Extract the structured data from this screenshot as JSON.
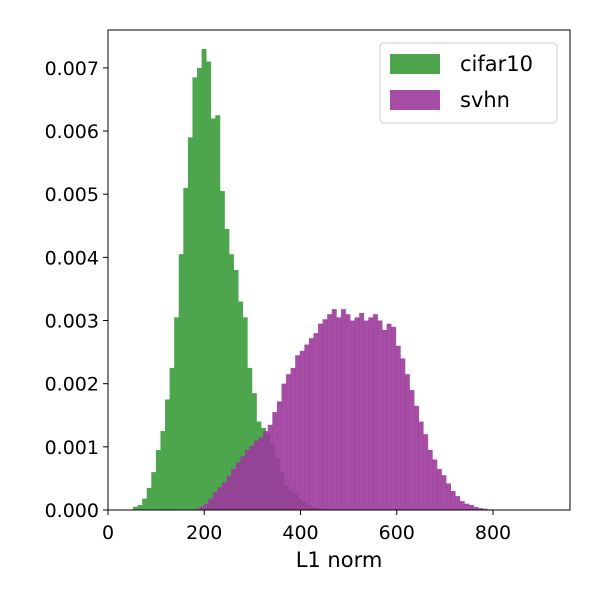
{
  "chart_data": {
    "type": "bar",
    "subtype": "overlapping-histogram",
    "title": "",
    "xlabel": "L1 norm",
    "ylabel": "",
    "xlim": [
      0,
      960
    ],
    "ylim": [
      0,
      0.0076
    ],
    "xticks": [
      0,
      200,
      400,
      600,
      800
    ],
    "xtick_labels": [
      "0",
      "200",
      "400",
      "600",
      "800"
    ],
    "yticks": [
      0.0,
      0.001,
      0.002,
      0.003,
      0.004,
      0.005,
      0.006,
      0.007
    ],
    "ytick_labels": [
      "0.000",
      "0.001",
      "0.002",
      "0.003",
      "0.004",
      "0.005",
      "0.006",
      "0.007"
    ],
    "grid": false,
    "legend_position": "top-right",
    "bin_width": 9.5,
    "series": [
      {
        "name": "cifar10",
        "color": "#4da64d",
        "opacity": 1.0,
        "bin_start": 52,
        "density": [
          5e-05,
          8e-05,
          0.00018,
          0.00035,
          0.0006,
          0.00095,
          0.00125,
          0.00175,
          0.00225,
          0.00305,
          0.00405,
          0.0051,
          0.0059,
          0.00685,
          0.007,
          0.0073,
          0.0071,
          0.0062,
          0.00625,
          0.00505,
          0.00445,
          0.00405,
          0.0038,
          0.0033,
          0.00305,
          0.00225,
          0.00185,
          0.0014,
          0.0013,
          0.0012,
          0.00105,
          0.00082,
          0.0006,
          0.00038,
          0.00032,
          0.00026,
          0.00018,
          0.00012,
          8e-05,
          5e-05,
          3e-05,
          2e-05
        ]
      },
      {
        "name": "svhn",
        "color": "#9c3a9c",
        "opacity": 0.9,
        "bin_start": 180,
        "density": [
          2e-05,
          5e-05,
          0.0001,
          0.00018,
          0.00028,
          0.00036,
          0.00044,
          0.00054,
          0.00065,
          0.00075,
          0.00085,
          0.00095,
          0.00102,
          0.0011,
          0.00115,
          0.00125,
          0.00135,
          0.00155,
          0.00172,
          0.002,
          0.00215,
          0.00225,
          0.00245,
          0.00252,
          0.00262,
          0.00272,
          0.0028,
          0.00295,
          0.00302,
          0.0031,
          0.00318,
          0.00305,
          0.00318,
          0.0031,
          0.003,
          0.00305,
          0.00312,
          0.003,
          0.00305,
          0.0031,
          0.003,
          0.00285,
          0.00295,
          0.0029,
          0.0026,
          0.0024,
          0.00215,
          0.0019,
          0.00165,
          0.0014,
          0.0012,
          0.00095,
          0.0008,
          0.00065,
          0.00055,
          0.00042,
          0.0003,
          0.00022,
          0.00014,
          0.0001,
          8e-05,
          5e-05,
          3e-05,
          2e-05,
          1e-05
        ]
      }
    ]
  }
}
